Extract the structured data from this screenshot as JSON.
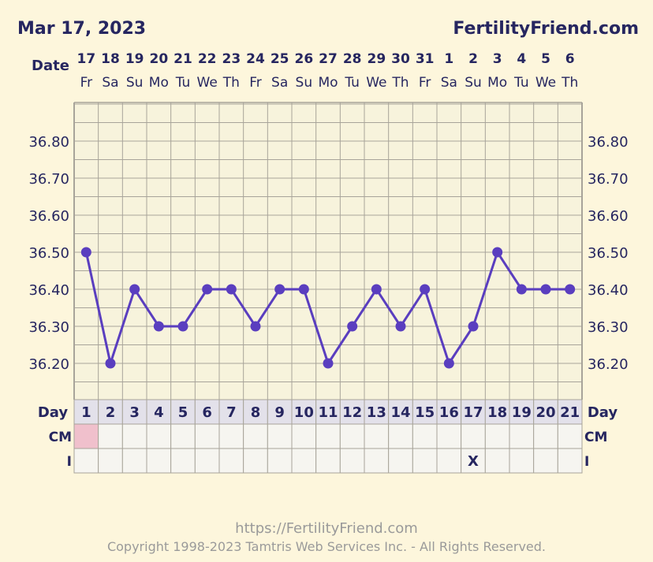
{
  "header": {
    "date": "Mar 17, 2023",
    "site": "FertilityFriend.com",
    "date_row_label": "Date"
  },
  "row_labels": {
    "day": "Day",
    "cm": "CM",
    "i": "I"
  },
  "footer": {
    "url": "https://FertilityFriend.com",
    "copyright": "Copyright 1998-2023 Tamtris Web Services Inc. - All Rights Reserved."
  },
  "colors": {
    "background": "#fdf6dc",
    "grid_bg": "#f7f3dc",
    "grid_line": "#a8a49a",
    "line": "#5a3ebf",
    "text": "#262660",
    "cm_highlight": "#f0c0cc"
  },
  "chart_data": {
    "type": "line",
    "dates": [
      "17",
      "18",
      "19",
      "20",
      "21",
      "22",
      "23",
      "24",
      "25",
      "26",
      "27",
      "28",
      "29",
      "30",
      "31",
      "1",
      "2",
      "3",
      "4",
      "5",
      "6"
    ],
    "weekdays": [
      "Fr",
      "Sa",
      "Su",
      "Mo",
      "Tu",
      "We",
      "Th",
      "Fr",
      "Sa",
      "Su",
      "Mo",
      "Tu",
      "We",
      "Th",
      "Fr",
      "Sa",
      "Su",
      "Mo",
      "Tu",
      "We",
      "Th"
    ],
    "days": [
      "1",
      "2",
      "3",
      "4",
      "5",
      "6",
      "7",
      "8",
      "9",
      "10",
      "11",
      "12",
      "13",
      "14",
      "15",
      "16",
      "17",
      "18",
      "19",
      "20",
      "21"
    ],
    "temperatures": [
      36.5,
      36.2,
      36.4,
      36.3,
      36.3,
      36.4,
      36.4,
      36.3,
      36.4,
      36.4,
      36.2,
      36.3,
      36.4,
      36.3,
      36.4,
      36.2,
      36.3,
      36.5,
      36.4,
      36.4,
      36.4
    ],
    "y_ticks": [
      "36.80",
      "36.70",
      "36.60",
      "36.50",
      "36.40",
      "36.30",
      "36.20"
    ],
    "ylim": [
      36.12,
      36.92
    ],
    "cm_highlight_day": 1,
    "i_marks": [
      {
        "day": 17,
        "text": "X"
      }
    ]
  }
}
